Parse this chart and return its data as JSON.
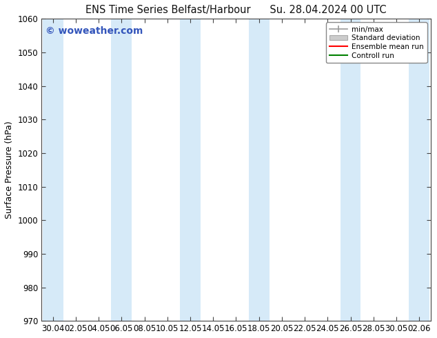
{
  "title_left": "ENS Time Series Belfast/Harbour",
  "title_right": "Su. 28.04.2024 00 UTC",
  "ylabel": "Surface Pressure (hPa)",
  "ylim": [
    970,
    1060
  ],
  "yticks": [
    970,
    980,
    990,
    1000,
    1010,
    1020,
    1030,
    1040,
    1050,
    1060
  ],
  "x_tick_labels": [
    "30.04",
    "02.05",
    "04.05",
    "06.05",
    "08.05",
    "10.05",
    "12.05",
    "14.05",
    "16.05",
    "18.05",
    "20.05",
    "22.05",
    "24.05",
    "26.05",
    "28.05",
    "30.05",
    "02.06"
  ],
  "watermark": "© woweather.com",
  "watermark_color": "#3355bb",
  "bg_color": "#ffffff",
  "plot_bg_color": "#ffffff",
  "shaded_band_color": "#d6eaf8",
  "legend_entries": [
    "min/max",
    "Standard deviation",
    "Ensemble mean run",
    "Controll run"
  ],
  "legend_colors": [
    "#aaaaaa",
    "#cccccc",
    "#ff0000",
    "#008000"
  ],
  "title_fontsize": 10.5,
  "axis_label_fontsize": 9,
  "tick_fontsize": 8.5,
  "watermark_fontsize": 10
}
